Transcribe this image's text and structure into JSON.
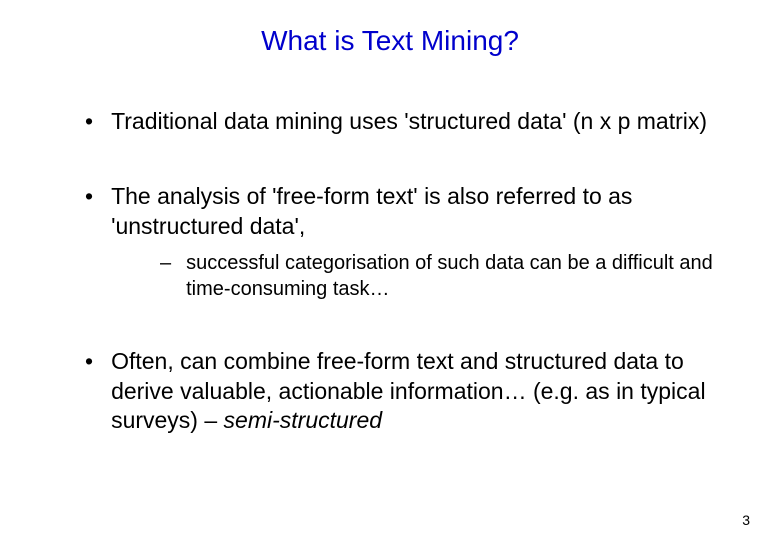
{
  "slide": {
    "title": "What is Text Mining?",
    "title_color": "#0000cc",
    "title_fontsize": 28,
    "background_color": "#ffffff",
    "body_color": "#000000",
    "body_fontsize": 23,
    "sub_body_fontsize": 20,
    "page_number": "3",
    "bullets": [
      {
        "marker": "•",
        "text": "Traditional data mining uses 'structured data' (n x p matrix)"
      },
      {
        "marker": "•",
        "text": "The analysis of 'free-form text' is also referred to as 'unstructured data',",
        "sub": [
          {
            "marker": "–",
            "text": "successful categorisation of such data can be a difficult and time-consuming task…"
          }
        ]
      },
      {
        "marker": "•",
        "text_parts": {
          "p1": "Often, can combine free-form text and structured data to derive valuable, actionable information… (e.g. as in typical surveys) – ",
          "p2_italic": "semi-structured"
        }
      }
    ]
  }
}
